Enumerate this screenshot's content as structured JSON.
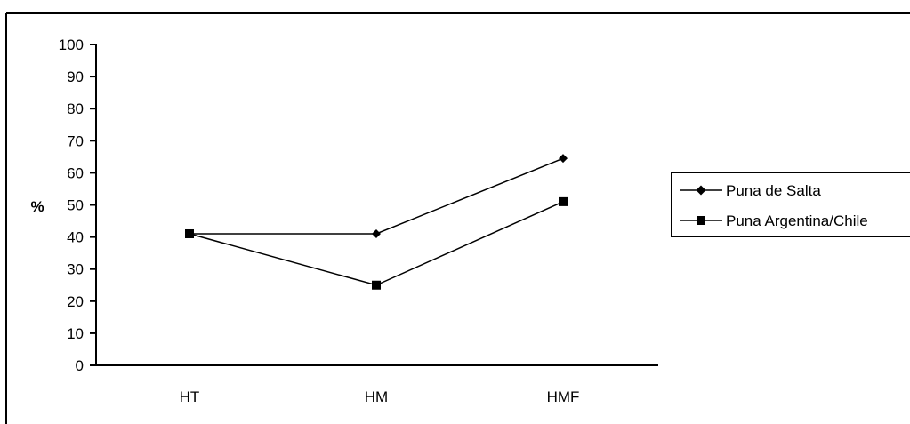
{
  "chart_data": {
    "type": "line",
    "title": "",
    "xlabel": "",
    "ylabel": "%",
    "categories": [
      "HT",
      "HM",
      "HMF"
    ],
    "ylim": [
      0,
      100
    ],
    "yticks": [
      0,
      10,
      20,
      30,
      40,
      50,
      60,
      70,
      80,
      90,
      100
    ],
    "grid": false,
    "legend_position": "right",
    "series": [
      {
        "name": "Puna de Salta",
        "marker": "diamond",
        "color": "#000000",
        "values": [
          41,
          41,
          64.5
        ]
      },
      {
        "name": "Puna Argentina/Chile",
        "marker": "square",
        "color": "#000000",
        "values": [
          41,
          25,
          51
        ]
      }
    ]
  }
}
